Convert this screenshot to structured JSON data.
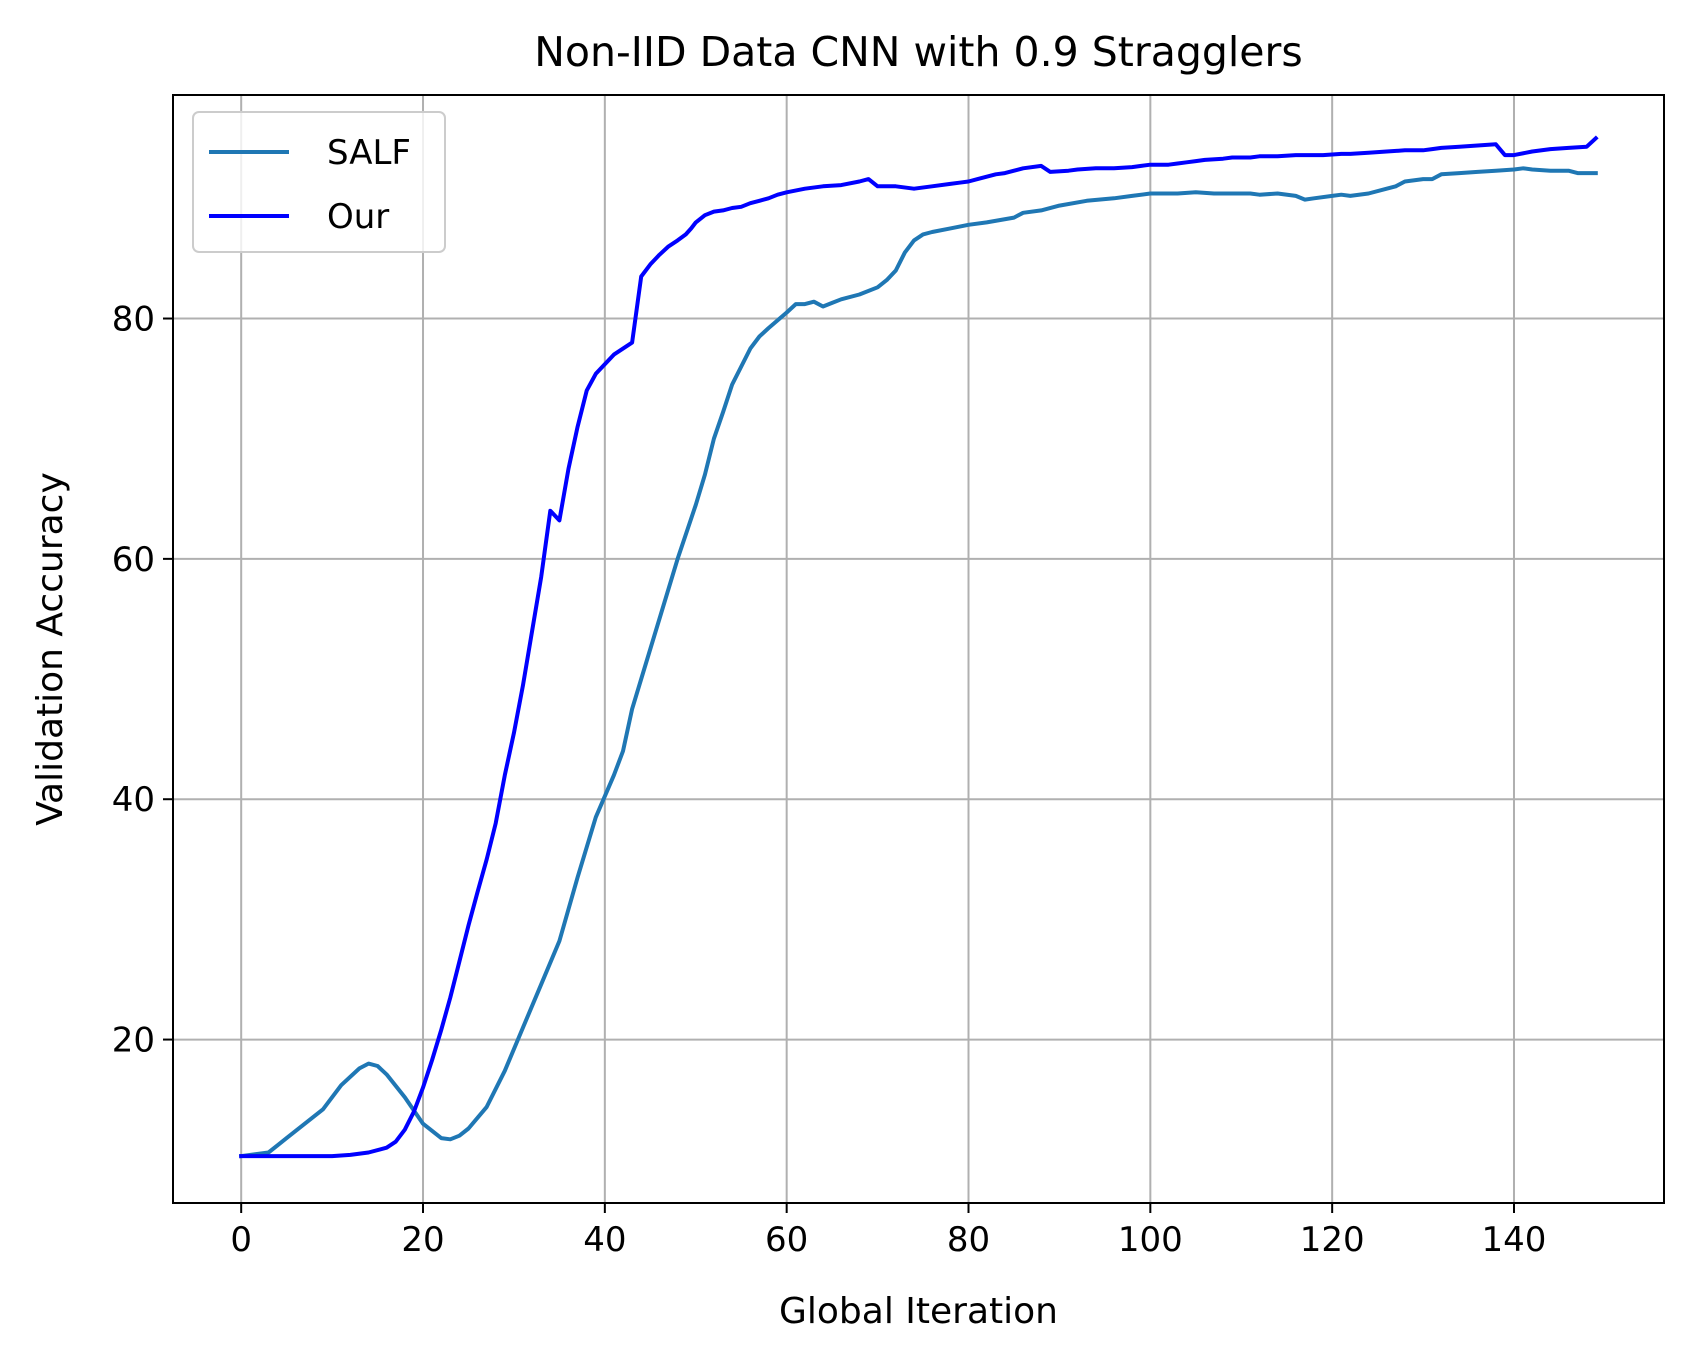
{
  "chart_data": {
    "type": "line",
    "title": "Non-IID Data CNN with 0.9 Stragglers",
    "xlabel": "Global Iteration",
    "ylabel": "Validation Accuracy",
    "xlim": [
      -7.5,
      156.5
    ],
    "ylim": [
      6.4,
      98.6
    ],
    "xticks": [
      0,
      20,
      40,
      60,
      80,
      100,
      120,
      140
    ],
    "yticks": [
      20,
      40,
      60,
      80
    ],
    "grid": true,
    "legend_position": "top-left",
    "series": [
      {
        "name": "SALF",
        "color": "#1f77b4",
        "x": [
          0,
          3,
          5,
          7,
          9,
          11,
          13,
          14,
          15,
          16,
          18,
          20,
          22,
          23,
          24,
          25,
          27,
          29,
          31,
          33,
          35,
          37,
          39,
          41,
          42,
          43,
          44,
          46,
          48,
          50,
          51,
          52,
          53,
          54,
          55,
          56,
          57,
          58,
          60,
          61,
          62,
          63,
          64,
          65,
          66,
          68,
          70,
          71,
          72,
          73,
          74,
          75,
          76,
          78,
          80,
          82,
          85,
          86,
          88,
          90,
          93,
          96,
          98,
          100,
          103,
          105,
          107,
          109,
          111,
          112,
          114,
          116,
          117,
          118,
          120,
          121,
          122,
          124,
          126,
          127,
          128,
          130,
          131,
          132,
          134,
          136,
          138,
          140,
          141,
          142,
          144,
          146,
          147,
          149
        ],
        "y": [
          10.3,
          10.6,
          11.8,
          13.0,
          14.2,
          16.2,
          17.6,
          18.0,
          17.8,
          17.1,
          15.2,
          13.0,
          11.8,
          11.7,
          12.0,
          12.6,
          14.4,
          17.4,
          21.0,
          24.6,
          28.2,
          33.5,
          38.5,
          42.0,
          44.0,
          47.5,
          50.0,
          55.0,
          60.0,
          64.5,
          67.0,
          70.0,
          72.2,
          74.5,
          76.0,
          77.5,
          78.5,
          79.2,
          80.5,
          81.2,
          81.2,
          81.4,
          81.0,
          81.3,
          81.6,
          82.0,
          82.6,
          83.2,
          84.0,
          85.5,
          86.5,
          87.0,
          87.2,
          87.5,
          87.8,
          88.0,
          88.4,
          88.8,
          89.0,
          89.4,
          89.8,
          90.0,
          90.2,
          90.4,
          90.4,
          90.5,
          90.4,
          90.4,
          90.4,
          90.3,
          90.4,
          90.2,
          89.9,
          90.0,
          90.2,
          90.3,
          90.2,
          90.4,
          90.8,
          91.0,
          91.4,
          91.6,
          91.6,
          92.0,
          92.1,
          92.2,
          92.3,
          92.4,
          92.5,
          92.4,
          92.3,
          92.3,
          92.1,
          92.1
        ]
      },
      {
        "name": "Our",
        "color": "#0000ff",
        "x": [
          0,
          5,
          10,
          12,
          14,
          16,
          17,
          18,
          19,
          20,
          21,
          22,
          23,
          24,
          25,
          26,
          27,
          28,
          29,
          30,
          31,
          32,
          33,
          34,
          35,
          36,
          37,
          38,
          39,
          40,
          41,
          42,
          43,
          44,
          45,
          46,
          47,
          48,
          48.9,
          49.5,
          50,
          51,
          52,
          53,
          54,
          55,
          56,
          57,
          58,
          59,
          60,
          62,
          64,
          66,
          68,
          69,
          70,
          72,
          74,
          76,
          78,
          79,
          80,
          81,
          82,
          83,
          84,
          85,
          86,
          88,
          89,
          91,
          92,
          94,
          96,
          98,
          99,
          100,
          102,
          103,
          104,
          105,
          106,
          108,
          109,
          111,
          112,
          114,
          116,
          117,
          118,
          119,
          121,
          122,
          124,
          126,
          128,
          129,
          130,
          131,
          132,
          134,
          136,
          138,
          139,
          140,
          142,
          144,
          146,
          148,
          149
        ],
        "y": [
          10.3,
          10.3,
          10.3,
          10.4,
          10.6,
          11.0,
          11.5,
          12.5,
          14.0,
          16.0,
          18.3,
          20.8,
          23.5,
          26.5,
          29.5,
          32.3,
          35.0,
          38.0,
          42.0,
          45.5,
          49.5,
          54.0,
          58.5,
          64.0,
          63.2,
          67.5,
          71.0,
          74.0,
          75.4,
          76.2,
          77.0,
          77.5,
          78.0,
          83.5,
          84.5,
          85.3,
          86.0,
          86.5,
          87.0,
          87.5,
          88.0,
          88.6,
          88.9,
          89.0,
          89.2,
          89.3,
          89.6,
          89.8,
          90.0,
          90.3,
          90.5,
          90.8,
          91.0,
          91.1,
          91.4,
          91.6,
          91.0,
          91.0,
          90.8,
          91.0,
          91.2,
          91.3,
          91.4,
          91.6,
          91.8,
          92.0,
          92.1,
          92.3,
          92.5,
          92.7,
          92.2,
          92.3,
          92.4,
          92.5,
          92.5,
          92.6,
          92.7,
          92.8,
          92.8,
          92.9,
          93.0,
          93.1,
          93.2,
          93.3,
          93.4,
          93.4,
          93.5,
          93.5,
          93.6,
          93.6,
          93.6,
          93.6,
          93.7,
          93.7,
          93.8,
          93.9,
          94.0,
          94.0,
          94.0,
          94.1,
          94.2,
          94.3,
          94.4,
          94.5,
          93.6,
          93.6,
          93.9,
          94.1,
          94.2,
          94.3,
          95.0
        ]
      }
    ]
  }
}
